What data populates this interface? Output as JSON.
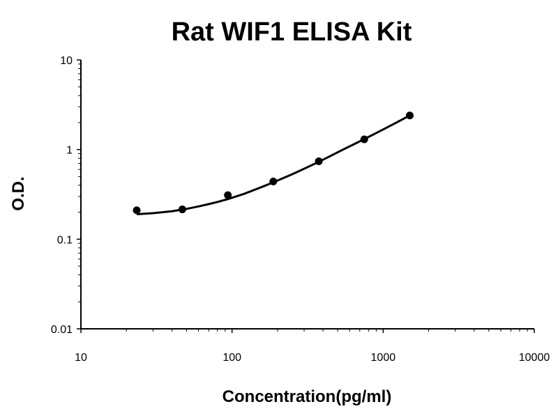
{
  "chart_data": {
    "type": "scatter",
    "title": "Rat WIF1 ELISA Kit",
    "xlabel": "Concentration(pg/ml)",
    "ylabel": "O.D.",
    "xscale": "log",
    "yscale": "log",
    "xlim": [
      10,
      10000
    ],
    "ylim": [
      0.01,
      10
    ],
    "grid": false,
    "x_tick_labels": [
      "10",
      "100",
      "1000",
      "10000"
    ],
    "y_tick_labels": [
      "0.01",
      "0.1",
      "1",
      "10"
    ],
    "x_ticks": [
      10,
      100,
      1000,
      10000
    ],
    "y_ticks": [
      0.01,
      0.1,
      1,
      10
    ],
    "series": [
      {
        "x": [
          23.4,
          46.9,
          93.8,
          187.5,
          375,
          750,
          1500
        ],
        "y": [
          0.21,
          0.215,
          0.31,
          0.44,
          0.74,
          1.3,
          2.4
        ],
        "marker": "circle",
        "color": "#000000"
      }
    ],
    "fit_curve": {
      "x": [
        23.4,
        30,
        40,
        50,
        60,
        70,
        80,
        93.8,
        120,
        150,
        187.5,
        250,
        300,
        375,
        450,
        550,
        650,
        750,
        900,
        1100,
        1300,
        1500
      ],
      "y": [
        0.19,
        0.195,
        0.205,
        0.218,
        0.232,
        0.246,
        0.26,
        0.28,
        0.32,
        0.37,
        0.43,
        0.53,
        0.61,
        0.73,
        0.85,
        1.01,
        1.16,
        1.31,
        1.53,
        1.82,
        2.11,
        2.4
      ],
      "color": "#000000"
    }
  }
}
